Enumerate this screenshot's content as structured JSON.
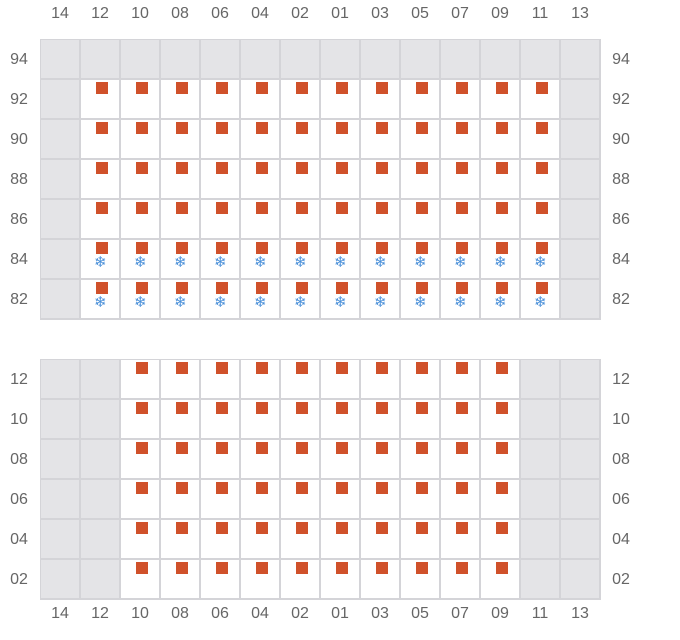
{
  "columns": [
    "14",
    "12",
    "10",
    "08",
    "06",
    "04",
    "02",
    "01",
    "03",
    "05",
    "07",
    "09",
    "11",
    "13"
  ],
  "colors": {
    "slot": "#d0512a",
    "cold": "#4a90d9",
    "unavailable": "#e4e4e7",
    "grid": "#d4d4d8"
  },
  "icons": {
    "slot": "square",
    "cold": "snowflake-icon"
  },
  "snowflake_glyph": "❄",
  "top_grid": {
    "rows": [
      {
        "label": "94",
        "cells": "gggggggggggggg"
      },
      {
        "label": "92",
        "cells": "gssssssssssssg"
      },
      {
        "label": "90",
        "cells": "gssssssssssssg"
      },
      {
        "label": "88",
        "cells": "gssssssssssssg"
      },
      {
        "label": "86",
        "cells": "gssssssssssssg"
      },
      {
        "label": "84",
        "cells": "gccccccccccccg"
      },
      {
        "label": "82",
        "cells": "gccccccccccccg"
      }
    ]
  },
  "bottom_grid": {
    "rows": [
      {
        "label": "12",
        "cells": "ggssssssssssgg"
      },
      {
        "label": "10",
        "cells": "ggssssssssssgg"
      },
      {
        "label": "08",
        "cells": "ggssssssssssgg"
      },
      {
        "label": "06",
        "cells": "ggssssssssssgg"
      },
      {
        "label": "04",
        "cells": "ggssssssssssgg"
      },
      {
        "label": "02",
        "cells": "ggssssssssssgg"
      }
    ]
  },
  "legend_codes": {
    "g": "unavailable",
    "s": "slot",
    "c": "slot with cold storage"
  }
}
